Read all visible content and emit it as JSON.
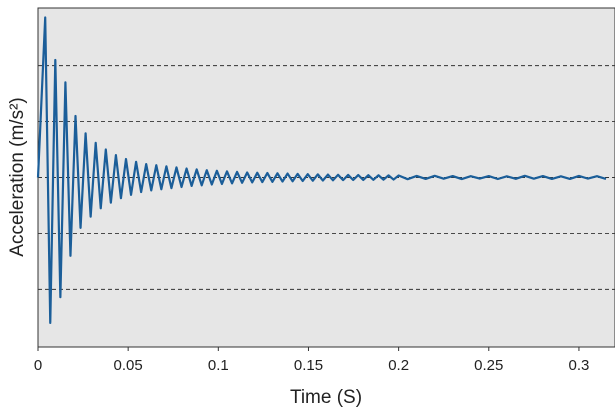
{
  "chart_data": {
    "type": "line",
    "x_label": "Time (S)",
    "y_label": "Acceleration (m/s²)",
    "xlim": [
      0,
      0.32
    ],
    "xticks": [
      0,
      0.05,
      0.1,
      0.15,
      0.2,
      0.25,
      0.3
    ],
    "ylim": [
      -3.03,
      3.03
    ],
    "yticks": [
      -2,
      -1,
      0,
      1,
      2
    ],
    "grid": true,
    "series": [
      {
        "color": "#1b5e99",
        "x": [
          0,
          0.004,
          0.0068,
          0.0096,
          0.0124,
          0.0152,
          0.018,
          0.0208,
          0.0236,
          0.0264,
          0.0292,
          0.032,
          0.0348,
          0.0376,
          0.0404,
          0.0432,
          0.046,
          0.0488,
          0.0516,
          0.0544,
          0.0572,
          0.06,
          0.0628,
          0.0656,
          0.0684,
          0.0712,
          0.074,
          0.0768,
          0.0796,
          0.0824,
          0.0852,
          0.088,
          0.0908,
          0.0936,
          0.0964,
          0.0992,
          0.102,
          0.1048,
          0.1076,
          0.1104,
          0.1132,
          0.116,
          0.1188,
          0.1216,
          0.1244,
          0.1272,
          0.13,
          0.1328,
          0.1356,
          0.1384,
          0.1412,
          0.144,
          0.1468,
          0.1496,
          0.1524,
          0.1552,
          0.158,
          0.1608,
          0.1636,
          0.1664,
          0.1692,
          0.172,
          0.1748,
          0.1776,
          0.1804,
          0.1832,
          0.186,
          0.1888,
          0.1916,
          0.1944,
          0.1972,
          0.2,
          0.205,
          0.21,
          0.215,
          0.22,
          0.225,
          0.23,
          0.235,
          0.24,
          0.245,
          0.25,
          0.255,
          0.26,
          0.265,
          0.27,
          0.275,
          0.28,
          0.285,
          0.29,
          0.295,
          0.3,
          0.305,
          0.31,
          0.315
        ],
        "values": [
          0,
          2.86,
          -2.6,
          2.1,
          -2.14,
          1.7,
          -1.4,
          1.1,
          -0.9,
          0.79,
          -0.7,
          0.62,
          -0.55,
          0.5,
          -0.45,
          0.4,
          -0.37,
          0.33,
          -0.31,
          0.28,
          -0.26,
          0.24,
          -0.23,
          0.22,
          -0.21,
          0.2,
          -0.19,
          0.18,
          -0.17,
          0.16,
          -0.15,
          0.145,
          -0.14,
          0.13,
          -0.125,
          0.12,
          -0.115,
          0.11,
          -0.105,
          0.1,
          -0.095,
          0.09,
          -0.088,
          0.085,
          -0.082,
          0.08,
          -0.078,
          0.075,
          -0.072,
          0.07,
          -0.068,
          0.065,
          -0.062,
          0.06,
          -0.058,
          0.056,
          -0.054,
          0.052,
          -0.05,
          0.048,
          -0.047,
          0.046,
          -0.045,
          0.044,
          -0.043,
          0.042,
          -0.041,
          0.04,
          -0.039,
          0.038,
          -0.037,
          0.036,
          -0.03,
          0.028,
          -0.025,
          0.03,
          -0.022,
          0.026,
          -0.028,
          0.024,
          -0.02,
          0.025,
          -0.027,
          0.022,
          -0.024,
          0.03,
          -0.021,
          0.025,
          -0.026,
          0.022,
          -0.025,
          0.028,
          -0.02,
          0.024,
          -0.026
        ]
      }
    ]
  }
}
